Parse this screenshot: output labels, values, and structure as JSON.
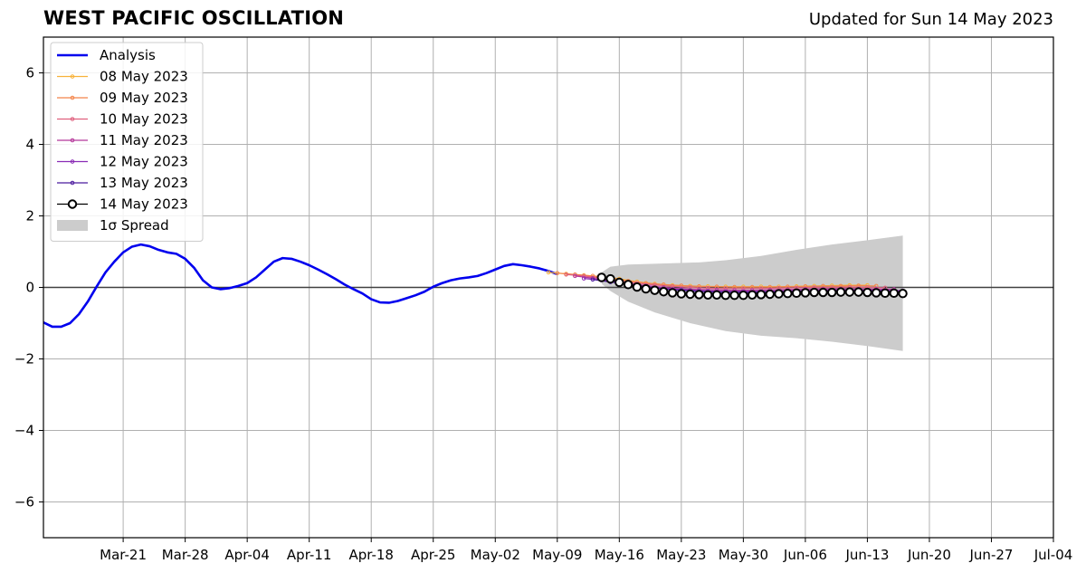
{
  "header": {
    "title": "WEST PACIFIC OSCILLATION",
    "subtitle": "Updated for Sun 14 May 2023"
  },
  "chart_data": {
    "type": "line",
    "title": "WEST PACIFIC OSCILLATION",
    "subtitle": "Updated for Sun 14 May 2023",
    "xlabel": "",
    "ylabel": "",
    "xlim": [
      "2023-03-12",
      "2023-07-04"
    ],
    "ylim": [
      -7,
      7
    ],
    "x_tick_labels": [
      "Mar-21",
      "Mar-28",
      "Apr-04",
      "Apr-11",
      "Apr-18",
      "Apr-25",
      "May-02",
      "May-09",
      "May-16",
      "May-23",
      "May-30",
      "Jun-06",
      "Jun-13",
      "Jun-20",
      "Jun-27",
      "Jul-04"
    ],
    "x_tick_dates": [
      "2023-03-21",
      "2023-03-28",
      "2023-04-04",
      "2023-04-11",
      "2023-04-18",
      "2023-04-25",
      "2023-05-02",
      "2023-05-09",
      "2023-05-16",
      "2023-05-23",
      "2023-05-30",
      "2023-06-06",
      "2023-06-13",
      "2023-06-20",
      "2023-06-27",
      "2023-07-04"
    ],
    "y_ticks": [
      -6,
      -4,
      -2,
      0,
      2,
      4,
      6
    ],
    "y_tick_labels": [
      "−6",
      "−4",
      "−2",
      "0",
      "2",
      "4",
      "6"
    ],
    "grid": true,
    "legend_position": "top-left",
    "series": [
      {
        "name": "Analysis",
        "color": "#0000ee",
        "style": "line",
        "points": [
          [
            "2023-03-12",
            -0.98
          ],
          [
            "2023-03-13",
            -1.1
          ],
          [
            "2023-03-14",
            -1.1
          ],
          [
            "2023-03-15",
            -1.0
          ],
          [
            "2023-03-16",
            -0.75
          ],
          [
            "2023-03-17",
            -0.4
          ],
          [
            "2023-03-18",
            0.02
          ],
          [
            "2023-03-19",
            0.42
          ],
          [
            "2023-03-20",
            0.72
          ],
          [
            "2023-03-21",
            0.98
          ],
          [
            "2023-03-22",
            1.14
          ],
          [
            "2023-03-23",
            1.2
          ],
          [
            "2023-03-24",
            1.15
          ],
          [
            "2023-03-25",
            1.05
          ],
          [
            "2023-03-26",
            0.98
          ],
          [
            "2023-03-27",
            0.94
          ],
          [
            "2023-03-28",
            0.8
          ],
          [
            "2023-03-29",
            0.55
          ],
          [
            "2023-03-30",
            0.2
          ],
          [
            "2023-03-31",
            0.0
          ],
          [
            "2023-04-01",
            -0.05
          ],
          [
            "2023-04-02",
            -0.02
          ],
          [
            "2023-04-03",
            0.04
          ],
          [
            "2023-04-04",
            0.12
          ],
          [
            "2023-04-05",
            0.28
          ],
          [
            "2023-04-06",
            0.5
          ],
          [
            "2023-04-07",
            0.72
          ],
          [
            "2023-04-08",
            0.82
          ],
          [
            "2023-04-09",
            0.8
          ],
          [
            "2023-04-10",
            0.72
          ],
          [
            "2023-04-11",
            0.62
          ],
          [
            "2023-04-12",
            0.5
          ],
          [
            "2023-04-13",
            0.37
          ],
          [
            "2023-04-14",
            0.23
          ],
          [
            "2023-04-15",
            0.08
          ],
          [
            "2023-04-16",
            -0.05
          ],
          [
            "2023-04-17",
            -0.17
          ],
          [
            "2023-04-18",
            -0.33
          ],
          [
            "2023-04-19",
            -0.42
          ],
          [
            "2023-04-20",
            -0.43
          ],
          [
            "2023-04-21",
            -0.38
          ],
          [
            "2023-04-22",
            -0.3
          ],
          [
            "2023-04-23",
            -0.22
          ],
          [
            "2023-04-24",
            -0.12
          ],
          [
            "2023-04-25",
            0.02
          ],
          [
            "2023-04-26",
            0.12
          ],
          [
            "2023-04-27",
            0.2
          ],
          [
            "2023-04-28",
            0.25
          ],
          [
            "2023-04-29",
            0.28
          ],
          [
            "2023-04-30",
            0.32
          ],
          [
            "2023-05-01",
            0.4
          ],
          [
            "2023-05-02",
            0.5
          ],
          [
            "2023-05-03",
            0.6
          ],
          [
            "2023-05-04",
            0.65
          ],
          [
            "2023-05-05",
            0.62
          ],
          [
            "2023-05-06",
            0.58
          ],
          [
            "2023-05-07",
            0.53
          ],
          [
            "2023-05-08",
            0.46
          ],
          [
            "2023-05-09",
            0.37
          ]
        ]
      },
      {
        "name": "08 May 2023",
        "color": "#f7b23b",
        "style": "dots",
        "points": [
          [
            "2023-05-08",
            0.42
          ],
          [
            "2023-05-10",
            0.38
          ],
          [
            "2023-05-12",
            0.34
          ],
          [
            "2023-05-14",
            0.3
          ],
          [
            "2023-05-16",
            0.24
          ],
          [
            "2023-05-18",
            0.16
          ],
          [
            "2023-05-20",
            0.1
          ],
          [
            "2023-05-22",
            0.06
          ],
          [
            "2023-05-24",
            0.04
          ],
          [
            "2023-05-26",
            0.03
          ],
          [
            "2023-05-28",
            0.02
          ],
          [
            "2023-05-30",
            0.02
          ],
          [
            "2023-06-01",
            0.02
          ],
          [
            "2023-06-03",
            0.02
          ],
          [
            "2023-06-05",
            0.03
          ],
          [
            "2023-06-07",
            0.04
          ],
          [
            "2023-06-09",
            0.05
          ],
          [
            "2023-06-11",
            0.06
          ],
          [
            "2023-06-13",
            0.06
          ]
        ]
      },
      {
        "name": "09 May 2023",
        "color": "#f4854a",
        "style": "dots",
        "points": [
          [
            "2023-05-09",
            0.4
          ],
          [
            "2023-05-11",
            0.36
          ],
          [
            "2023-05-13",
            0.32
          ],
          [
            "2023-05-15",
            0.26
          ],
          [
            "2023-05-17",
            0.18
          ],
          [
            "2023-05-19",
            0.12
          ],
          [
            "2023-05-21",
            0.08
          ],
          [
            "2023-05-23",
            0.05
          ],
          [
            "2023-05-25",
            0.03
          ],
          [
            "2023-05-27",
            0.02
          ],
          [
            "2023-05-29",
            0.01
          ],
          [
            "2023-05-31",
            0.01
          ],
          [
            "2023-06-02",
            0.01
          ],
          [
            "2023-06-04",
            0.02
          ],
          [
            "2023-06-06",
            0.03
          ],
          [
            "2023-06-08",
            0.04
          ],
          [
            "2023-06-10",
            0.04
          ],
          [
            "2023-06-12",
            0.05
          ],
          [
            "2023-06-14",
            0.04
          ]
        ]
      },
      {
        "name": "10 May 2023",
        "color": "#e0607e",
        "style": "dots",
        "points": [
          [
            "2023-05-10",
            0.36
          ],
          [
            "2023-05-12",
            0.32
          ],
          [
            "2023-05-14",
            0.26
          ],
          [
            "2023-05-16",
            0.18
          ],
          [
            "2023-05-18",
            0.12
          ],
          [
            "2023-05-20",
            0.07
          ],
          [
            "2023-05-22",
            0.03
          ],
          [
            "2023-05-24",
            0.0
          ],
          [
            "2023-05-26",
            -0.02
          ],
          [
            "2023-05-28",
            -0.03
          ],
          [
            "2023-05-30",
            -0.03
          ],
          [
            "2023-06-01",
            -0.03
          ],
          [
            "2023-06-03",
            -0.02
          ],
          [
            "2023-06-05",
            -0.01
          ],
          [
            "2023-06-07",
            0.0
          ],
          [
            "2023-06-09",
            0.0
          ],
          [
            "2023-06-11",
            0.01
          ],
          [
            "2023-06-13",
            0.0
          ],
          [
            "2023-06-15",
            -0.01
          ]
        ]
      },
      {
        "name": "11 May 2023",
        "color": "#b5379a",
        "style": "dots",
        "points": [
          [
            "2023-05-11",
            0.32
          ],
          [
            "2023-05-13",
            0.26
          ],
          [
            "2023-05-15",
            0.18
          ],
          [
            "2023-05-17",
            0.11
          ],
          [
            "2023-05-19",
            0.05
          ],
          [
            "2023-05-21",
            0.0
          ],
          [
            "2023-05-23",
            -0.04
          ],
          [
            "2023-05-25",
            -0.06
          ],
          [
            "2023-05-27",
            -0.07
          ],
          [
            "2023-05-29",
            -0.08
          ],
          [
            "2023-05-31",
            -0.08
          ],
          [
            "2023-06-02",
            -0.07
          ],
          [
            "2023-06-04",
            -0.06
          ],
          [
            "2023-06-06",
            -0.05
          ],
          [
            "2023-06-08",
            -0.04
          ],
          [
            "2023-06-10",
            -0.04
          ],
          [
            "2023-06-12",
            -0.04
          ],
          [
            "2023-06-14",
            -0.05
          ],
          [
            "2023-06-16",
            -0.05
          ]
        ]
      },
      {
        "name": "12 May 2023",
        "color": "#8a2bb5",
        "style": "dots",
        "points": [
          [
            "2023-05-12",
            0.25
          ],
          [
            "2023-05-14",
            0.2
          ],
          [
            "2023-05-16",
            0.12
          ],
          [
            "2023-05-18",
            0.05
          ],
          [
            "2023-05-20",
            0.0
          ],
          [
            "2023-05-22",
            -0.05
          ],
          [
            "2023-05-24",
            -0.08
          ],
          [
            "2023-05-26",
            -0.1
          ],
          [
            "2023-05-28",
            -0.11
          ],
          [
            "2023-05-30",
            -0.11
          ],
          [
            "2023-06-01",
            -0.11
          ],
          [
            "2023-06-03",
            -0.1
          ],
          [
            "2023-06-05",
            -0.09
          ],
          [
            "2023-06-07",
            -0.08
          ],
          [
            "2023-06-09",
            -0.07
          ],
          [
            "2023-06-11",
            -0.07
          ],
          [
            "2023-06-13",
            -0.08
          ],
          [
            "2023-06-15",
            -0.08
          ],
          [
            "2023-06-17",
            -0.09
          ]
        ]
      },
      {
        "name": "13 May 2023",
        "color": "#4b1a9e",
        "style": "dots",
        "points": [
          [
            "2023-05-13",
            0.22
          ],
          [
            "2023-05-15",
            0.15
          ],
          [
            "2023-05-17",
            0.08
          ],
          [
            "2023-05-19",
            0.02
          ],
          [
            "2023-05-21",
            -0.04
          ],
          [
            "2023-05-23",
            -0.08
          ],
          [
            "2023-05-25",
            -0.11
          ],
          [
            "2023-05-27",
            -0.13
          ],
          [
            "2023-05-29",
            -0.14
          ],
          [
            "2023-05-31",
            -0.14
          ],
          [
            "2023-06-02",
            -0.13
          ],
          [
            "2023-06-04",
            -0.12
          ],
          [
            "2023-06-06",
            -0.11
          ],
          [
            "2023-06-08",
            -0.1
          ],
          [
            "2023-06-10",
            -0.1
          ],
          [
            "2023-06-12",
            -0.1
          ],
          [
            "2023-06-14",
            -0.11
          ],
          [
            "2023-06-16",
            -0.12
          ],
          [
            "2023-06-17",
            -0.12
          ]
        ]
      },
      {
        "name": "14 May 2023",
        "color": "#000000",
        "style": "circles",
        "points": [
          [
            "2023-05-14",
            0.28
          ],
          [
            "2023-05-15",
            0.24
          ],
          [
            "2023-05-16",
            0.14
          ],
          [
            "2023-05-17",
            0.08
          ],
          [
            "2023-05-18",
            0.01
          ],
          [
            "2023-05-19",
            -0.04
          ],
          [
            "2023-05-20",
            -0.08
          ],
          [
            "2023-05-21",
            -0.12
          ],
          [
            "2023-05-22",
            -0.15
          ],
          [
            "2023-05-23",
            -0.18
          ],
          [
            "2023-05-24",
            -0.19
          ],
          [
            "2023-05-25",
            -0.2
          ],
          [
            "2023-05-26",
            -0.21
          ],
          [
            "2023-05-27",
            -0.21
          ],
          [
            "2023-05-28",
            -0.22
          ],
          [
            "2023-05-29",
            -0.22
          ],
          [
            "2023-05-30",
            -0.22
          ],
          [
            "2023-05-31",
            -0.21
          ],
          [
            "2023-06-01",
            -0.2
          ],
          [
            "2023-06-02",
            -0.19
          ],
          [
            "2023-06-03",
            -0.18
          ],
          [
            "2023-06-04",
            -0.17
          ],
          [
            "2023-06-05",
            -0.16
          ],
          [
            "2023-06-06",
            -0.15
          ],
          [
            "2023-06-07",
            -0.14
          ],
          [
            "2023-06-08",
            -0.14
          ],
          [
            "2023-06-09",
            -0.14
          ],
          [
            "2023-06-10",
            -0.13
          ],
          [
            "2023-06-11",
            -0.13
          ],
          [
            "2023-06-12",
            -0.13
          ],
          [
            "2023-06-13",
            -0.14
          ],
          [
            "2023-06-14",
            -0.15
          ],
          [
            "2023-06-15",
            -0.16
          ],
          [
            "2023-06-16",
            -0.16
          ],
          [
            "2023-06-17",
            -0.17
          ]
        ]
      }
    ],
    "spread": {
      "name": "1σ Spread",
      "color": "#cccccc",
      "upper": [
        [
          "2023-05-14",
          0.42
        ],
        [
          "2023-05-15",
          0.58
        ],
        [
          "2023-05-17",
          0.64
        ],
        [
          "2023-05-20",
          0.66
        ],
        [
          "2023-05-25",
          0.7
        ],
        [
          "2023-05-28",
          0.76
        ],
        [
          "2023-06-01",
          0.88
        ],
        [
          "2023-06-05",
          1.05
        ],
        [
          "2023-06-09",
          1.2
        ],
        [
          "2023-06-13",
          1.32
        ],
        [
          "2023-06-17",
          1.45
        ]
      ],
      "lower": [
        [
          "2023-05-14",
          0.1
        ],
        [
          "2023-05-15",
          -0.1
        ],
        [
          "2023-05-17",
          -0.4
        ],
        [
          "2023-05-20",
          -0.7
        ],
        [
          "2023-05-24",
          -1.0
        ],
        [
          "2023-05-28",
          -1.22
        ],
        [
          "2023-06-01",
          -1.35
        ],
        [
          "2023-06-05",
          -1.42
        ],
        [
          "2023-06-09",
          -1.52
        ],
        [
          "2023-06-13",
          -1.64
        ],
        [
          "2023-06-17",
          -1.78
        ]
      ]
    },
    "legend": [
      "Analysis",
      "08 May 2023",
      "09 May 2023",
      "10 May 2023",
      "11 May 2023",
      "12 May 2023",
      "13 May 2023",
      "14 May 2023",
      "1σ Spread"
    ]
  }
}
